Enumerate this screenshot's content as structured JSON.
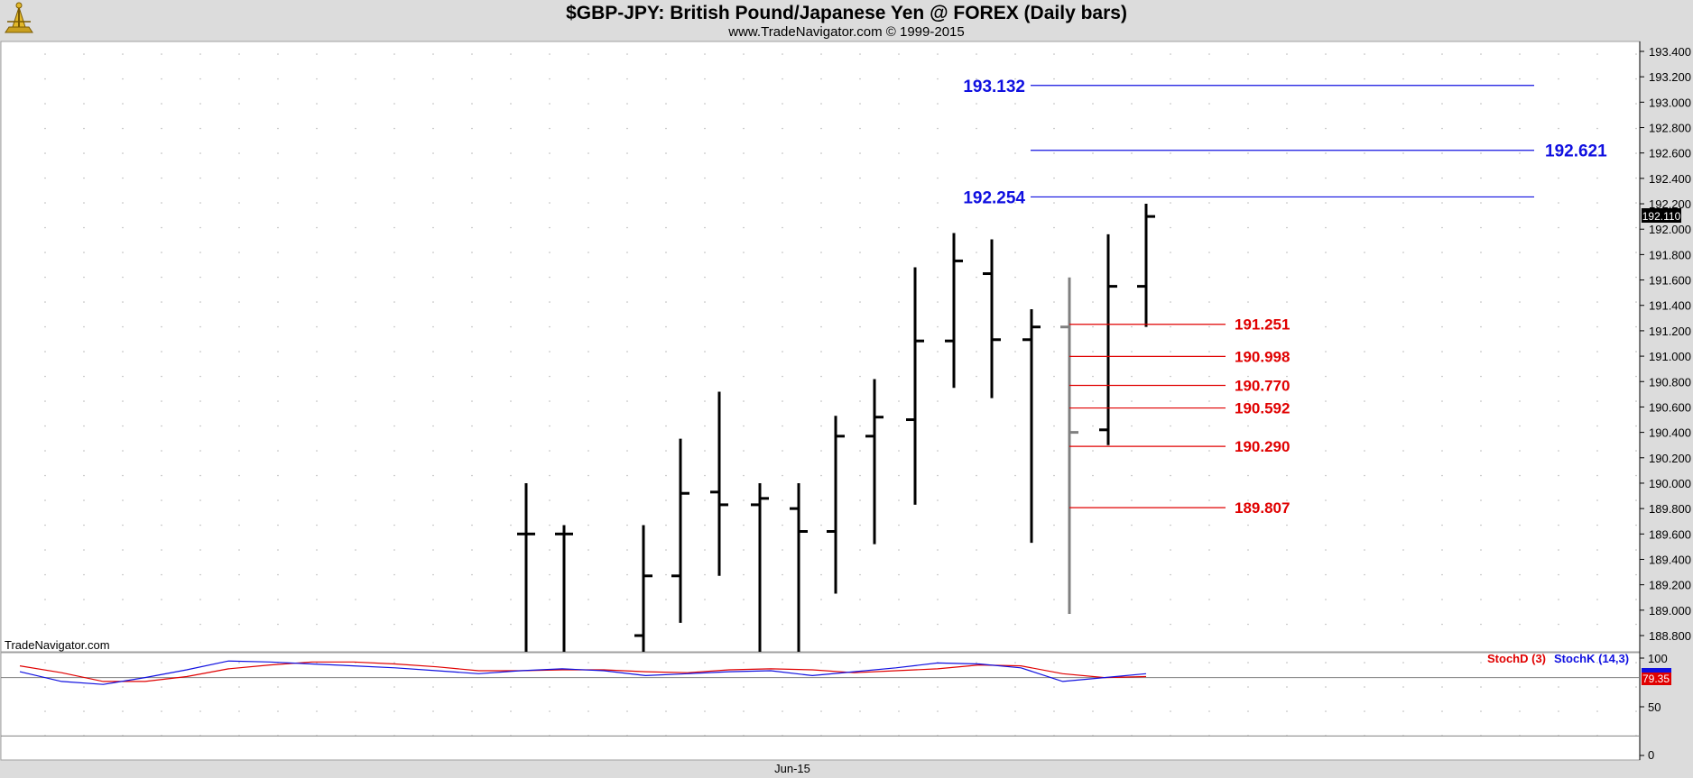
{
  "header": {
    "title": "$GBP-JPY:  British Pound/Japanese Yen @ FOREX  (Daily bars)",
    "subtitle": "www.TradeNavigator.com © 1999-2015",
    "watermark": "TradeNavigator.com",
    "logo_icon": "trade-navigator-logo-icon"
  },
  "colors": {
    "background": "#ffffff",
    "frame": "#dcdcdc",
    "bars": "#000000",
    "projected_bar": "#808080",
    "fib_extension": "#1010e0",
    "fib_retracement": "#e00000",
    "stochD": "#e00000",
    "stochK": "#1010e0"
  },
  "chart_data": [
    {
      "type": "ohlc",
      "title": "$GBP-JPY:  British Pound/Japanese Yen @ FOREX  (Daily bars)",
      "ylim": [
        188.6,
        193.5
      ],
      "y_ticks": [
        "193.400",
        "193.200",
        "193.000",
        "192.800",
        "192.600",
        "192.400",
        "192.200",
        "192.000",
        "191.800",
        "191.600",
        "191.400",
        "191.200",
        "191.000",
        "190.800",
        "190.600",
        "190.400",
        "190.200",
        "190.000",
        "189.800",
        "189.600",
        "189.400",
        "189.200",
        "189.000",
        "188.800"
      ],
      "x_label": "Jun-15",
      "last_price": "192.110",
      "bars": [
        {
          "open": 189.6,
          "high": 190.0,
          "low": 188.2,
          "close": 189.6
        },
        {
          "open": 189.6,
          "high": 189.67,
          "low": 188.3,
          "close": 189.6
        },
        {
          "open": 188.8,
          "high": 189.67,
          "low": 188.1,
          "close": 189.27
        },
        {
          "open": 189.27,
          "high": 190.35,
          "low": 188.9,
          "close": 189.92
        },
        {
          "open": 189.93,
          "high": 190.72,
          "low": 189.27,
          "close": 189.83
        },
        {
          "open": 189.83,
          "high": 190.0,
          "low": 188.65,
          "close": 189.88
        },
        {
          "open": 189.8,
          "high": 190.0,
          "low": 188.5,
          "close": 189.62
        },
        {
          "open": 189.62,
          "high": 190.53,
          "low": 189.13,
          "close": 190.37
        },
        {
          "open": 190.37,
          "high": 190.82,
          "low": 189.52,
          "close": 190.52
        },
        {
          "open": 190.5,
          "high": 191.7,
          "low": 189.83,
          "close": 191.12
        },
        {
          "open": 191.12,
          "high": 191.97,
          "low": 190.75,
          "close": 191.75
        },
        {
          "open": 191.65,
          "high": 191.92,
          "low": 190.67,
          "close": 191.13
        },
        {
          "open": 191.13,
          "high": 191.37,
          "low": 189.53,
          "close": 191.23
        },
        {
          "open": 190.42,
          "high": 191.96,
          "low": 190.3,
          "close": 191.55
        },
        {
          "open": 191.55,
          "high": 192.2,
          "low": 191.23,
          "close": 192.1
        }
      ],
      "projected_bar": {
        "open": 191.23,
        "high": 191.62,
        "low": 188.97,
        "close": 190.4
      },
      "fib_extension_levels": [
        {
          "label": "193.132",
          "value": 193.132
        },
        {
          "label": "192.621",
          "value": 192.621
        },
        {
          "label": "192.254",
          "value": 192.254
        }
      ],
      "fib_retracement_levels": [
        {
          "label": "191.251",
          "value": 191.251
        },
        {
          "label": "190.998",
          "value": 190.998
        },
        {
          "label": "190.770",
          "value": 190.77
        },
        {
          "label": "190.592",
          "value": 190.592
        },
        {
          "label": "190.290",
          "value": 190.29
        },
        {
          "label": "189.807",
          "value": 189.807
        }
      ]
    },
    {
      "type": "line",
      "ylim": [
        0,
        100
      ],
      "y_ticks": [
        "100",
        "50",
        "0"
      ],
      "reference_lines": [
        80,
        20
      ],
      "last_value": "79.35",
      "series": [
        {
          "name": "StochD (3)",
          "values": [
            92,
            85,
            76,
            76,
            81,
            89,
            93,
            96,
            96,
            94,
            91,
            87,
            87,
            88,
            88,
            86,
            85,
            88,
            89,
            88,
            85,
            87,
            89,
            93,
            92,
            84,
            80,
            81
          ]
        },
        {
          "name": "StochK (14,3)",
          "values": [
            86,
            76,
            73,
            80,
            88,
            97,
            96,
            94,
            92,
            90,
            87,
            84,
            87,
            89,
            87,
            82,
            84,
            86,
            87,
            82,
            86,
            90,
            95,
            94,
            90,
            76,
            80,
            84
          ]
        }
      ]
    }
  ]
}
